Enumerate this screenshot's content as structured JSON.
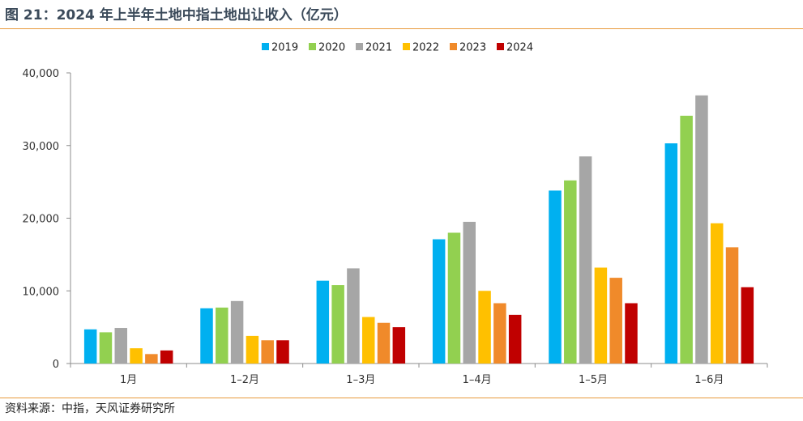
{
  "header": {
    "title": "图 21：2024 年上半年土地中指土地出让收入（亿元）"
  },
  "footer": {
    "source": "资料来源：中指，天风证券研究所"
  },
  "chart_data": {
    "type": "bar",
    "title": "",
    "xlabel": "",
    "ylabel": "",
    "categories": [
      "1月",
      "1–2月",
      "1–3月",
      "1–4月",
      "1–5月",
      "1–6月"
    ],
    "ylim": [
      0,
      40000
    ],
    "yticks": [
      0,
      10000,
      20000,
      30000,
      40000
    ],
    "ytick_labels": [
      "0",
      "10,000",
      "20,000",
      "30,000",
      "40,000"
    ],
    "legend_position": "top-center",
    "grid": false,
    "series": [
      {
        "name": "2019",
        "color": "#00b0f0",
        "values": [
          4700,
          7600,
          11400,
          17100,
          23800,
          30300
        ]
      },
      {
        "name": "2020",
        "color": "#92d050",
        "values": [
          4300,
          7700,
          10800,
          18000,
          25200,
          34100
        ]
      },
      {
        "name": "2021",
        "color": "#a6a6a6",
        "values": [
          4900,
          8600,
          13100,
          19500,
          28500,
          36900
        ]
      },
      {
        "name": "2022",
        "color": "#ffc000",
        "values": [
          2100,
          3800,
          6400,
          10000,
          13200,
          19300
        ]
      },
      {
        "name": "2023",
        "color": "#f08a2a",
        "values": [
          1300,
          3200,
          5600,
          8300,
          11800,
          16000
        ]
      },
      {
        "name": "2024",
        "color": "#c00000",
        "values": [
          1800,
          3200,
          5000,
          6700,
          8300,
          10500
        ]
      }
    ]
  }
}
